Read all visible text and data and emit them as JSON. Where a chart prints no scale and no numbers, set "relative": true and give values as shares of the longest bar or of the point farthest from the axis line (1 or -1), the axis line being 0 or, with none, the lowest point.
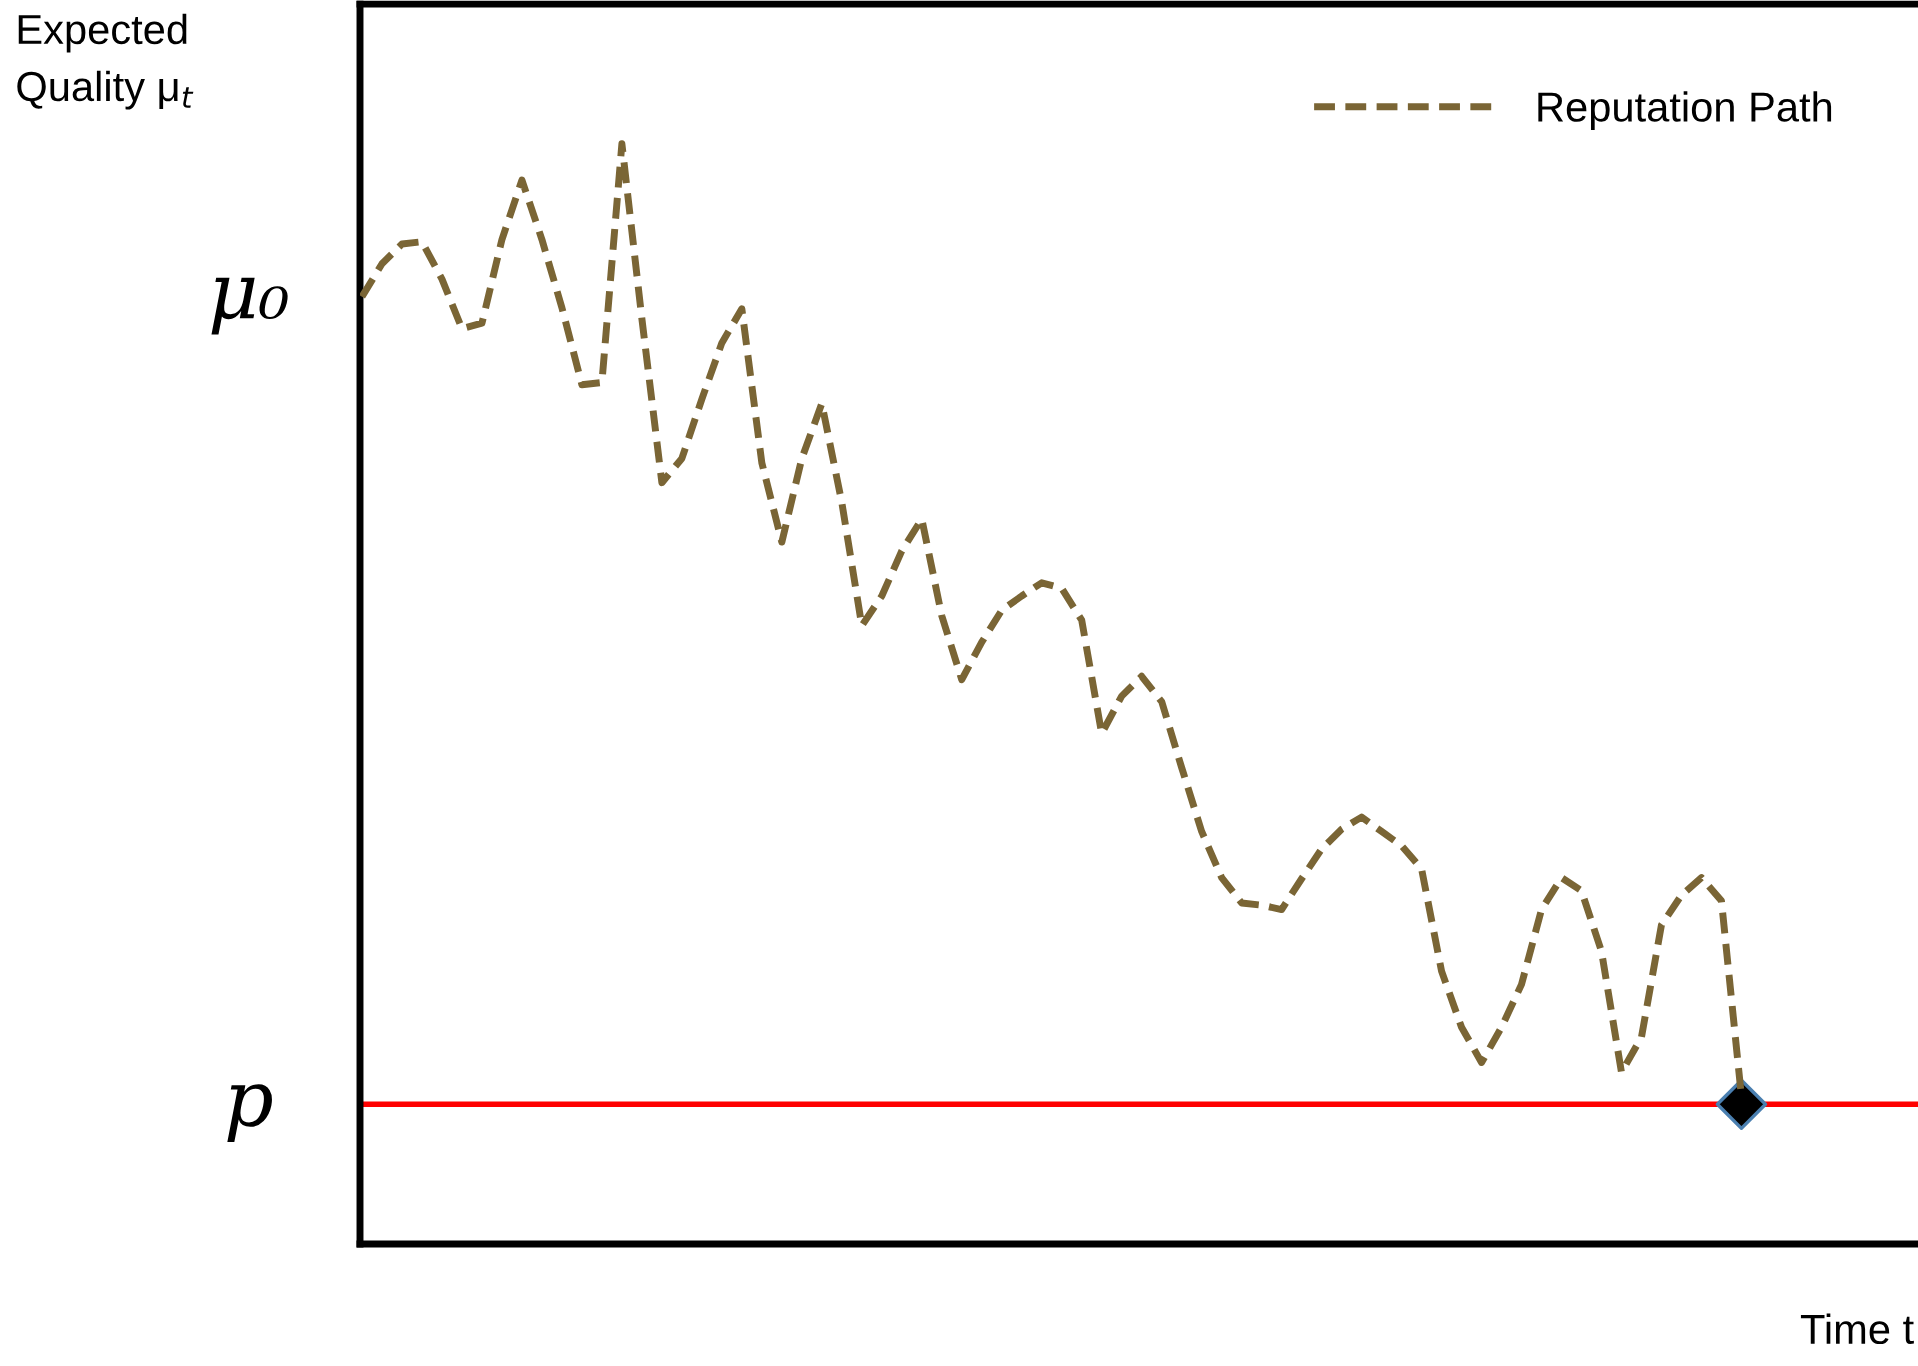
{
  "chart_data": {
    "type": "line",
    "relative": true,
    "xlabel": "Time t",
    "ylabel": "Expected\nQuality μ$_{t}$",
    "legend": "top right",
    "line_style": "dashed",
    "annotations": [
      "μ₀"
    ],
    "ref_lines": [
      {
        "axis": "y",
        "value": 0.127,
        "label": "p",
        "color": "#ff0000"
      }
    ],
    "categories": [
      null,
      null,
      null,
      null,
      null,
      null,
      null,
      null,
      null,
      null,
      null,
      null,
      null,
      null,
      null,
      null,
      null,
      null,
      null,
      null,
      null,
      null,
      null,
      null,
      null,
      null,
      null,
      null,
      null,
      null,
      null,
      null,
      null,
      null,
      null,
      null,
      null,
      null,
      null,
      null,
      null,
      null,
      null,
      null,
      null,
      null,
      null,
      null,
      null,
      null,
      null,
      null,
      null,
      null,
      null,
      null,
      null,
      null,
      null,
      null,
      null,
      null,
      null,
      null,
      null,
      null,
      null,
      null,
      null,
      null
    ],
    "series": [
      {
        "name": "Reputation Path",
        "color": "#7a6535",
        "values": [
          0.861,
          0.891,
          0.909,
          0.911,
          0.877,
          0.832,
          0.837,
          0.913,
          0.967,
          0.913,
          0.851,
          0.781,
          0.783,
          1.0,
          0.841,
          0.692,
          0.714,
          0.768,
          0.819,
          0.85,
          0.71,
          0.638,
          0.714,
          0.764,
          0.674,
          0.562,
          0.589,
          0.63,
          0.659,
          0.571,
          0.513,
          0.547,
          0.576,
          0.589,
          0.601,
          0.596,
          0.567,
          0.464,
          0.498,
          0.516,
          0.493,
          0.433,
          0.375,
          0.333,
          0.31,
          0.308,
          0.304,
          0.332,
          0.359,
          0.377,
          0.388,
          0.375,
          0.362,
          0.341,
          0.248,
          0.197,
          0.165,
          0.197,
          0.236,
          0.304,
          0.333,
          0.321,
          0.266,
          0.156,
          0.188,
          0.29,
          0.317,
          0.333,
          0.312,
          0.134
        ]
      }
    ]
  }
}
